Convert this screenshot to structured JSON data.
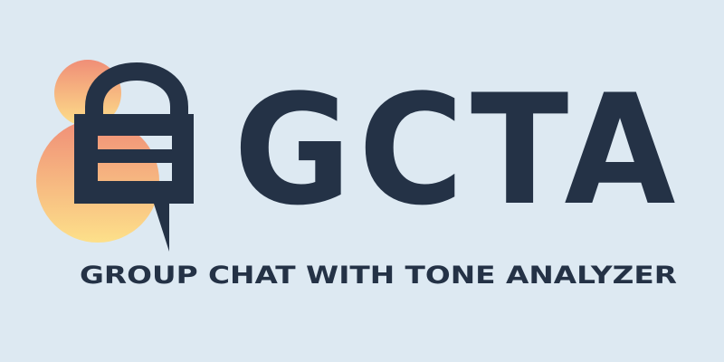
{
  "brand": {
    "wordmark": "GCTA",
    "tagline": "GROUP CHAT WITH TONE ANALYZER"
  },
  "colors": {
    "background": "#dde9f2",
    "ink": "#243246",
    "gradient_top": "#f08e77",
    "gradient_bottom": "#fde08a"
  },
  "icons": {
    "logo": "padlock-chat-bubble-icon"
  }
}
